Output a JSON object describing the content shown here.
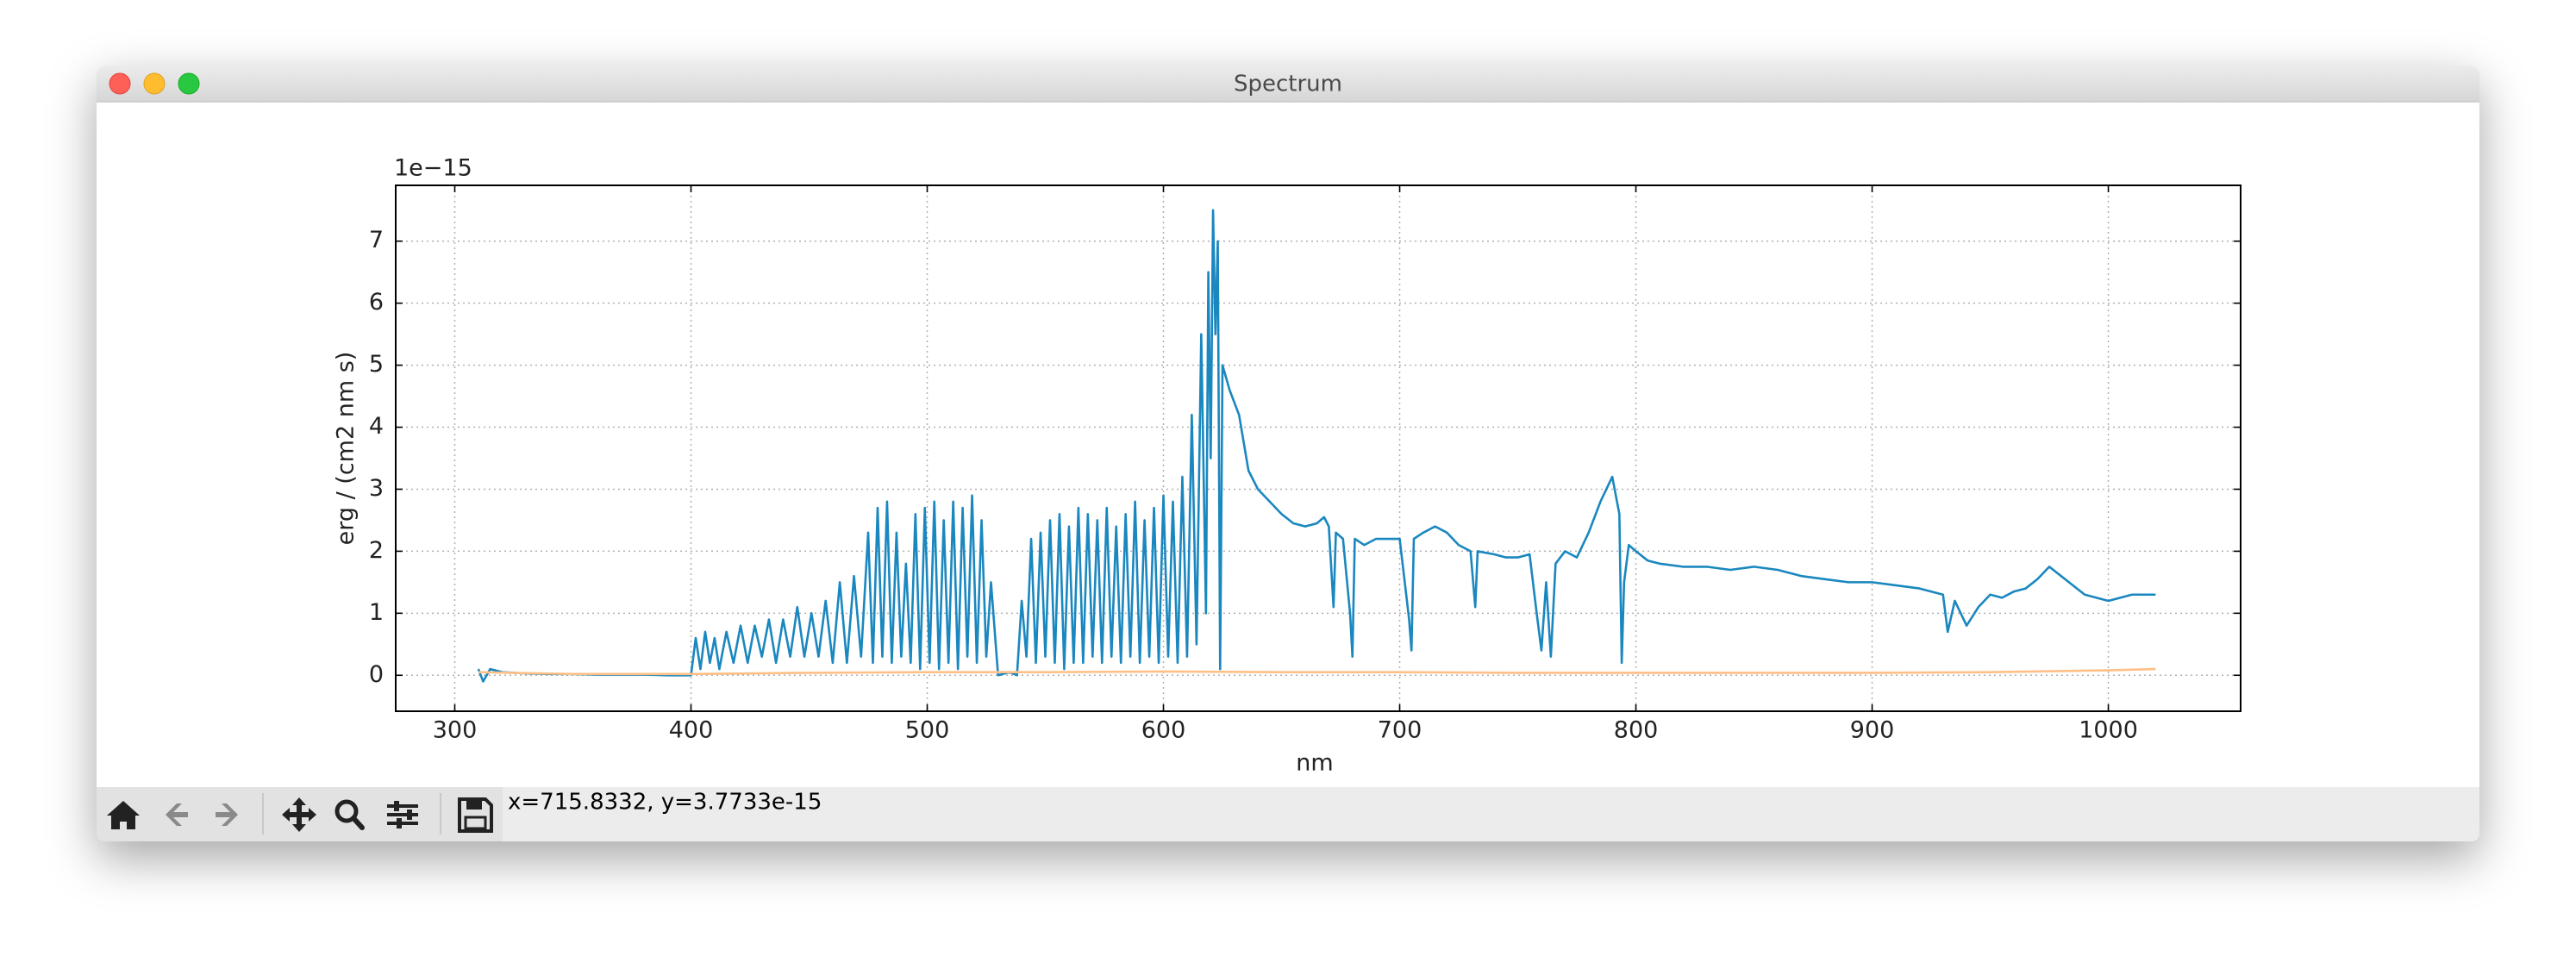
{
  "window": {
    "title": "Spectrum"
  },
  "toolbar": {
    "status": "x=715.8332, y=3.7733e-15"
  },
  "chart_data": {
    "type": "line",
    "xlabel": "nm",
    "ylabel": "erg / (cm2 nm s)",
    "offset_text": "1e−15",
    "xlim": [
      275,
      1056
    ],
    "ylim": [
      -0.58,
      7.9
    ],
    "xticks": [
      300,
      400,
      500,
      600,
      700,
      800,
      900,
      1000
    ],
    "yticks": [
      0,
      1,
      2,
      3,
      4,
      5,
      6,
      7
    ],
    "grid": true,
    "series": [
      {
        "color": "#1a87bf",
        "x": [
          310,
          312,
          315,
          320,
          330,
          340,
          350,
          360,
          370,
          380,
          390,
          400,
          402,
          404,
          406,
          408,
          410,
          412,
          415,
          418,
          421,
          424,
          427,
          430,
          433,
          436,
          439,
          442,
          445,
          448,
          451,
          454,
          457,
          460,
          463,
          466,
          469,
          472,
          475,
          477,
          479,
          481,
          483,
          485,
          487,
          489,
          491,
          493,
          495,
          497,
          499,
          501,
          503,
          505,
          507,
          509,
          511,
          513,
          515,
          517,
          519,
          521,
          523,
          525,
          527,
          530,
          535,
          538,
          540,
          542,
          544,
          546,
          548,
          550,
          552,
          554,
          556,
          558,
          560,
          562,
          564,
          566,
          568,
          570,
          572,
          574,
          576,
          578,
          580,
          582,
          584,
          586,
          588,
          590,
          592,
          594,
          596,
          598,
          600,
          602,
          604,
          606,
          608,
          610,
          612,
          614,
          616,
          618,
          619,
          620,
          621,
          622,
          623,
          624,
          625,
          628,
          632,
          636,
          640,
          645,
          650,
          655,
          660,
          665,
          668,
          670,
          672,
          673,
          676,
          679,
          680,
          681,
          685,
          690,
          695,
          700,
          704,
          705,
          706,
          710,
          715,
          720,
          725,
          730,
          732,
          733,
          740,
          745,
          750,
          755,
          758,
          760,
          762,
          764,
          766,
          770,
          775,
          780,
          785,
          790,
          793,
          794,
          795,
          797,
          800,
          805,
          810,
          820,
          830,
          840,
          850,
          860,
          870,
          880,
          890,
          900,
          910,
          920,
          930,
          932,
          935,
          940,
          945,
          950,
          955,
          960,
          965,
          970,
          975,
          980,
          990,
          1000,
          1010,
          1020
        ],
        "values": [
          0.1,
          -0.1,
          0.1,
          0.05,
          0.03,
          0.02,
          0.02,
          0.01,
          0.01,
          0.01,
          0,
          0,
          0.6,
          0.1,
          0.7,
          0.2,
          0.6,
          0.1,
          0.7,
          0.2,
          0.8,
          0.2,
          0.8,
          0.3,
          0.9,
          0.2,
          0.9,
          0.3,
          1.1,
          0.3,
          1.0,
          0.3,
          1.2,
          0.2,
          1.5,
          0.2,
          1.6,
          0.3,
          2.3,
          0.2,
          2.7,
          0.3,
          2.8,
          0.2,
          2.3,
          0.3,
          1.8,
          0.2,
          2.6,
          0.1,
          2.7,
          0.2,
          2.8,
          0.1,
          2.5,
          0.2,
          2.8,
          0.1,
          2.7,
          0.3,
          2.9,
          0.2,
          2.5,
          0.3,
          1.5,
          0,
          0.05,
          0,
          1.2,
          0.3,
          2.2,
          0.2,
          2.3,
          0.3,
          2.5,
          0.2,
          2.6,
          0.1,
          2.4,
          0.2,
          2.7,
          0.2,
          2.6,
          0.3,
          2.5,
          0.2,
          2.7,
          0.3,
          2.4,
          0.2,
          2.6,
          0.3,
          2.8,
          0.2,
          2.5,
          0.3,
          2.7,
          0.2,
          2.9,
          0.3,
          2.8,
          0.2,
          3.2,
          0.3,
          4.2,
          0.5,
          5.5,
          1.0,
          6.5,
          3.5,
          7.5,
          5.5,
          7.0,
          0.1,
          5.0,
          4.6,
          4.2,
          3.3,
          3.0,
          2.8,
          2.6,
          2.45,
          2.4,
          2.45,
          2.55,
          2.4,
          1.1,
          2.3,
          2.2,
          1.0,
          0.3,
          2.2,
          2.1,
          2.2,
          2.2,
          2.2,
          0.9,
          0.4,
          2.2,
          2.3,
          2.4,
          2.3,
          2.1,
          2.0,
          1.1,
          2.0,
          1.95,
          1.9,
          1.9,
          1.95,
          1.0,
          0.4,
          1.5,
          0.3,
          1.8,
          2.0,
          1.9,
          2.3,
          2.8,
          3.2,
          2.6,
          0.2,
          1.5,
          2.1,
          2.0,
          1.85,
          1.8,
          1.75,
          1.75,
          1.7,
          1.75,
          1.7,
          1.6,
          1.55,
          1.5,
          1.5,
          1.45,
          1.4,
          1.3,
          0.7,
          1.2,
          0.8,
          1.1,
          1.3,
          1.25,
          1.35,
          1.4,
          1.55,
          1.75,
          1.6,
          1.3,
          1.2,
          1.3,
          1.3
        ]
      },
      {
        "color": "#ffbf86",
        "x": [
          310,
          350,
          400,
          450,
          500,
          550,
          600,
          650,
          700,
          750,
          800,
          850,
          900,
          950,
          1000,
          1020
        ],
        "values": [
          0.05,
          0.02,
          0.02,
          0.04,
          0.05,
          0.05,
          0.06,
          0.05,
          0.05,
          0.04,
          0.04,
          0.04,
          0.04,
          0.05,
          0.08,
          0.1
        ]
      }
    ]
  }
}
